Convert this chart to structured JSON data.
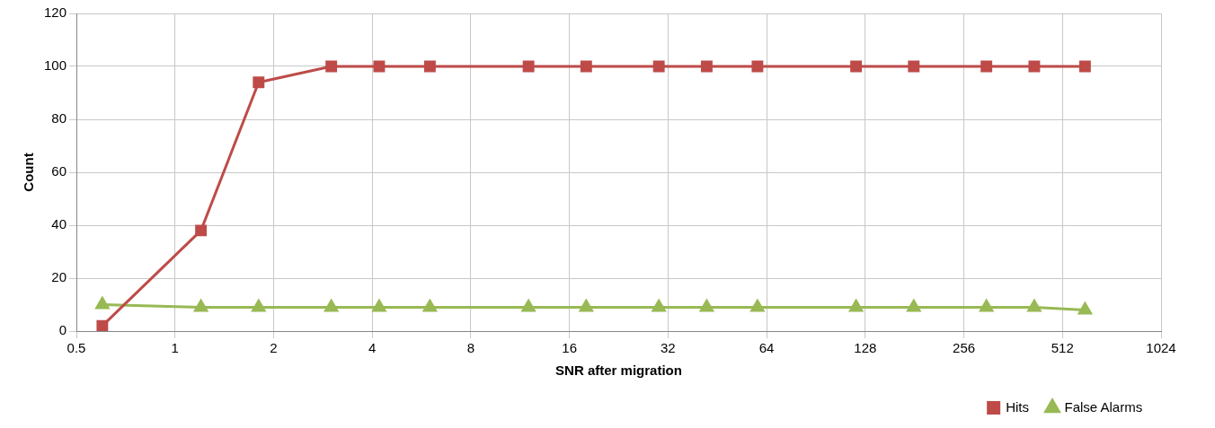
{
  "chart_data": {
    "type": "line",
    "xlabel": "SNR after migration",
    "ylabel": "Count",
    "log": "x",
    "xlim": [
      0.5,
      1024
    ],
    "xticks": [
      0.5,
      1,
      2,
      4,
      8,
      16,
      32,
      64,
      128,
      256,
      512,
      1024
    ],
    "ylim": [
      0,
      120
    ],
    "yticks": [
      0,
      20,
      40,
      60,
      80,
      100,
      120
    ],
    "grid": true,
    "legend": "bottom",
    "line_style": "solid",
    "x": [
      0.6,
      1.2,
      1.8,
      3,
      4.2,
      6,
      12,
      18,
      30,
      42,
      60,
      120,
      180,
      300,
      420,
      600
    ],
    "series": [
      {
        "name": "Hits",
        "color": "#be4b48",
        "marker": "square",
        "values": [
          2,
          38,
          94,
          100,
          100,
          100,
          100,
          100,
          100,
          100,
          100,
          100,
          100,
          100,
          100,
          100
        ]
      },
      {
        "name": "False Alarms",
        "color": "#98b954",
        "marker": "triangle",
        "values": [
          10,
          9,
          9,
          9,
          9,
          9,
          9,
          9,
          9,
          9,
          9,
          9,
          9,
          9,
          9,
          8
        ]
      }
    ]
  }
}
